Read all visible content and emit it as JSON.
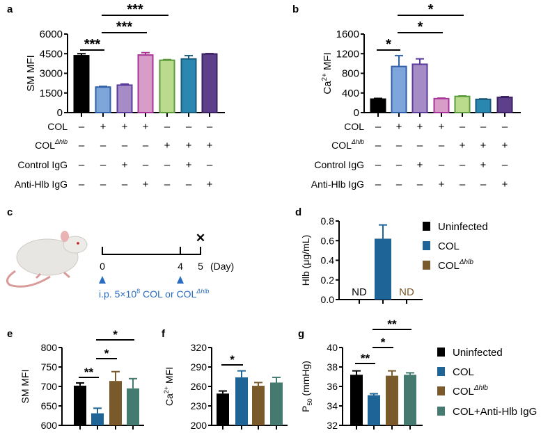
{
  "panel_labels": {
    "a": "a",
    "b": "b",
    "c": "c",
    "d": "d",
    "e": "e",
    "f": "f",
    "g": "g"
  },
  "chart_data": [
    {
      "id": "a",
      "type": "bar",
      "ylabel": "SM MFI",
      "ylim": [
        0,
        6000
      ],
      "yticks": [
        0,
        1500,
        3000,
        4500,
        6000
      ],
      "values": [
        4350,
        1950,
        2100,
        4400,
        4000,
        4100,
        4480
      ],
      "errors": [
        150,
        50,
        80,
        180,
        50,
        250,
        30
      ],
      "fills": [
        "#000000",
        "#7fa6da",
        "#a68cc6",
        "#d89cc8",
        "#badb8c",
        "#2a88b0",
        "#5e3f8c"
      ],
      "strokes": [
        "#000000",
        "#2f5fa8",
        "#5a3a9a",
        "#a8349a",
        "#5a9a3a",
        "#1a5a7a",
        "#3a2060"
      ],
      "conditions": [
        {
          "label": "COL",
          "sup": "",
          "signs": [
            "–",
            "+",
            "+",
            "+",
            "–",
            "–",
            "–"
          ]
        },
        {
          "label": "COL",
          "sup": "Δhlb",
          "signs": [
            "–",
            "–",
            "–",
            "–",
            "+",
            "+",
            "+"
          ]
        },
        {
          "label": "Control IgG",
          "sup": "",
          "signs": [
            "–",
            "–",
            "+",
            "–",
            "–",
            "+",
            "–"
          ]
        },
        {
          "label": "Anti-Hlb IgG",
          "sup": "",
          "signs": [
            "–",
            "–",
            "–",
            "+",
            "–",
            "–",
            "+"
          ]
        }
      ],
      "significance": [
        {
          "from": 0,
          "to": 1,
          "label": "***"
        },
        {
          "from": 1,
          "to": 3,
          "label": "***"
        },
        {
          "from": 1,
          "to": 4,
          "label": "***"
        }
      ]
    },
    {
      "id": "b",
      "type": "bar",
      "ylabel": "Ca",
      "ylabel_sup": "2+",
      "ylabel_rest": " MFI",
      "ylim": [
        0,
        1600
      ],
      "yticks": [
        0,
        400,
        800,
        1200,
        1600
      ],
      "values": [
        275,
        940,
        985,
        285,
        330,
        270,
        310
      ],
      "errors": [
        15,
        220,
        110,
        10,
        10,
        10,
        15
      ],
      "fills": [
        "#000000",
        "#7fa6da",
        "#a68cc6",
        "#d89cc8",
        "#badb8c",
        "#2a88b0",
        "#5e3f8c"
      ],
      "strokes": [
        "#000000",
        "#2f5fa8",
        "#5a3a9a",
        "#a8349a",
        "#5a9a3a",
        "#1a5a7a",
        "#3a2060"
      ],
      "conditions": [
        {
          "label": "COL",
          "sup": "",
          "signs": [
            "–",
            "+",
            "+",
            "+",
            "–",
            "–",
            "–"
          ]
        },
        {
          "label": "COL",
          "sup": "Δhlb",
          "signs": [
            "–",
            "–",
            "–",
            "–",
            "+",
            "+",
            "+"
          ]
        },
        {
          "label": "Control IgG",
          "sup": "",
          "signs": [
            "–",
            "–",
            "+",
            "–",
            "–",
            "+",
            "–"
          ]
        },
        {
          "label": "Anti-Hlb IgG",
          "sup": "",
          "signs": [
            "–",
            "–",
            "–",
            "+",
            "–",
            "–",
            "+"
          ]
        }
      ],
      "significance": [
        {
          "from": 0,
          "to": 1,
          "label": "*"
        },
        {
          "from": 1,
          "to": 3,
          "label": "*"
        },
        {
          "from": 1,
          "to": 4,
          "label": "*"
        }
      ]
    },
    {
      "id": "d",
      "type": "bar",
      "ylabel": "Hlb (μg/mL)",
      "ylim": [
        0,
        0.8
      ],
      "yticks": [
        "0.0",
        "0.2",
        "0.4",
        "0.6",
        "0.8"
      ],
      "categories": [
        "Uninfected",
        "COL",
        "COL Δhlb"
      ],
      "values": [
        null,
        0.62,
        null
      ],
      "errors": [
        0,
        0.14,
        0
      ],
      "fills": [
        "#000000",
        "#1f6496",
        "#7a5a2a"
      ],
      "bar_labels": [
        "ND",
        "",
        "ND"
      ],
      "legend": [
        {
          "label": "Uninfected",
          "sup": ""
        },
        {
          "label": "COL",
          "sup": ""
        },
        {
          "label": "COL",
          "sup": "Δhlb"
        }
      ],
      "significance": []
    },
    {
      "id": "e",
      "type": "bar",
      "ylabel": "SM MFI",
      "ylim": [
        600,
        800
      ],
      "yticks": [
        600,
        650,
        700,
        750,
        800
      ],
      "values": [
        702,
        631,
        714,
        695
      ],
      "errors": [
        7,
        13,
        24,
        25
      ],
      "fills": [
        "#000000",
        "#1f6496",
        "#7a5a2a",
        "#457a70"
      ],
      "significance": [
        {
          "from": 0,
          "to": 1,
          "label": "**"
        },
        {
          "from": 1,
          "to": 2,
          "label": "*"
        },
        {
          "from": 1,
          "to": 3,
          "label": "*"
        }
      ]
    },
    {
      "id": "f",
      "type": "bar",
      "ylabel": "Ca",
      "ylabel_sup": "2+",
      "ylabel_rest": " MFI",
      "ylim": [
        200,
        320
      ],
      "yticks": [
        200,
        230,
        260,
        290,
        320
      ],
      "values": [
        249,
        274,
        261,
        266
      ],
      "errors": [
        4,
        10,
        5,
        8
      ],
      "fills": [
        "#000000",
        "#1f6496",
        "#7a5a2a",
        "#457a70"
      ],
      "significance": [
        {
          "from": 0,
          "to": 1,
          "label": "*"
        }
      ]
    },
    {
      "id": "g",
      "type": "bar",
      "ylabel": "P",
      "ylabel_sub": "50",
      "ylabel_rest": " (mmHg)",
      "ylim": [
        32,
        40
      ],
      "yticks": [
        32,
        34,
        36,
        38,
        40
      ],
      "values": [
        37.2,
        35.1,
        37.1,
        37.2
      ],
      "errors": [
        0.4,
        0.15,
        0.5,
        0.2
      ],
      "fills": [
        "#000000",
        "#1f6496",
        "#7a5a2a",
        "#457a70"
      ],
      "legend": [
        {
          "label": "Uninfected",
          "sup": ""
        },
        {
          "label": "COL",
          "sup": ""
        },
        {
          "label": "COL",
          "sup": "Δhlb"
        },
        {
          "label": "COL+Anti-Hlb IgG",
          "sup": ""
        }
      ],
      "significance": [
        {
          "from": 0,
          "to": 1,
          "label": "**"
        },
        {
          "from": 1,
          "to": 2,
          "label": "*"
        },
        {
          "from": 1,
          "to": 3,
          "label": "**"
        }
      ]
    }
  ],
  "schematic": {
    "days": [
      "0",
      "4",
      "5"
    ],
    "day_unit": "(Day)",
    "end_mark": "✕",
    "injection_text": "i.p. 5×10",
    "injection_exp": "8",
    "injection_text2": " COL or COL",
    "injection_sup": "Δhlb",
    "accent": "#2a6cc0"
  }
}
